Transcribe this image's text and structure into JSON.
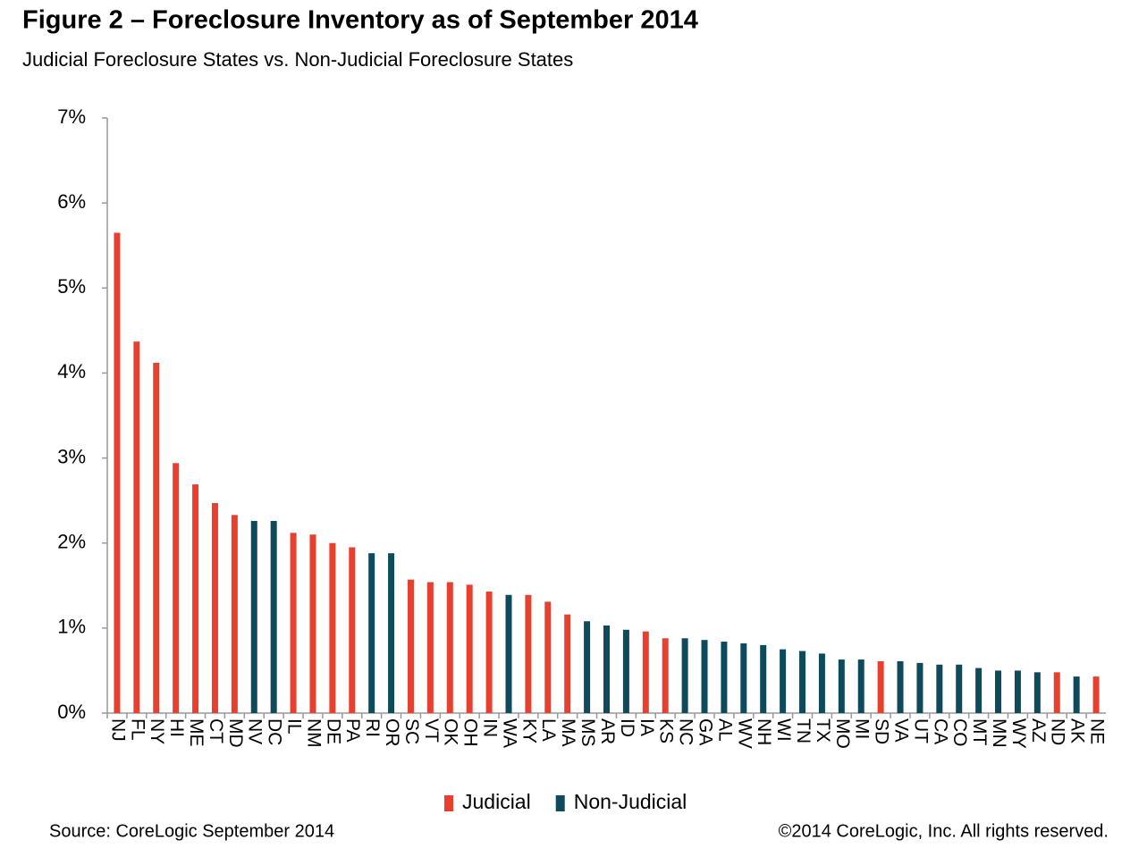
{
  "chart_data": {
    "type": "bar",
    "title": "Figure 2 – Foreclosure Inventory as of September 2014",
    "subtitle": "Judicial Foreclosure States vs. Non-Judicial Foreclosure States",
    "source": "Source: CoreLogic  September 2014",
    "copyright": "©2014 CoreLogic, Inc.  All rights reserved.",
    "categories": [
      "NJ",
      "FL",
      "NY",
      "HI",
      "ME",
      "CT",
      "MD",
      "NV",
      "DC",
      "IL",
      "NM",
      "DE",
      "PA",
      "RI",
      "OR",
      "SC",
      "VT",
      "OK",
      "OH",
      "IN",
      "WA",
      "KY",
      "LA",
      "MA",
      "MS",
      "AR",
      "ID",
      "IA",
      "KS",
      "NC",
      "GA",
      "AL",
      "WV",
      "NH",
      "WI",
      "TN",
      "TX",
      "MO",
      "MI",
      "SD",
      "VA",
      "UT",
      "CA",
      "CO",
      "MT",
      "MN",
      "WY",
      "AZ",
      "ND",
      "AK",
      "NE"
    ],
    "series": [
      {
        "name": "Judicial",
        "color": "#e8402f",
        "values": [
          5.65,
          4.37,
          4.12,
          2.94,
          2.69,
          2.47,
          2.33,
          null,
          null,
          2.12,
          2.1,
          2.0,
          1.95,
          null,
          null,
          1.57,
          1.54,
          1.54,
          1.51,
          1.43,
          null,
          1.39,
          1.31,
          1.16,
          null,
          null,
          null,
          0.96,
          0.88,
          null,
          null,
          null,
          null,
          null,
          null,
          null,
          null,
          null,
          null,
          0.61,
          null,
          null,
          null,
          null,
          null,
          null,
          null,
          null,
          0.48,
          null,
          0.43
        ]
      },
      {
        "name": "Non-Judicial",
        "color": "#0d4a5c",
        "values": [
          null,
          null,
          null,
          null,
          null,
          null,
          null,
          2.26,
          2.26,
          null,
          null,
          null,
          null,
          1.88,
          1.88,
          null,
          null,
          null,
          null,
          null,
          1.39,
          null,
          null,
          null,
          1.08,
          1.03,
          0.98,
          null,
          null,
          0.88,
          0.86,
          0.84,
          0.82,
          0.8,
          0.75,
          0.73,
          0.7,
          0.63,
          0.63,
          null,
          0.61,
          0.59,
          0.57,
          0.57,
          0.53,
          0.5,
          0.5,
          0.48,
          null,
          0.43,
          null
        ]
      }
    ],
    "ylim": [
      0,
      7
    ],
    "yticks": [
      {
        "value": 0,
        "label": "0%"
      },
      {
        "value": 1,
        "label": "1%"
      },
      {
        "value": 2,
        "label": "2%"
      },
      {
        "value": 3,
        "label": "3%"
      },
      {
        "value": 4,
        "label": "4%"
      },
      {
        "value": 5,
        "label": "5%"
      },
      {
        "value": 6,
        "label": "6%"
      },
      {
        "value": 7,
        "label": "7%"
      }
    ],
    "grid": false
  }
}
